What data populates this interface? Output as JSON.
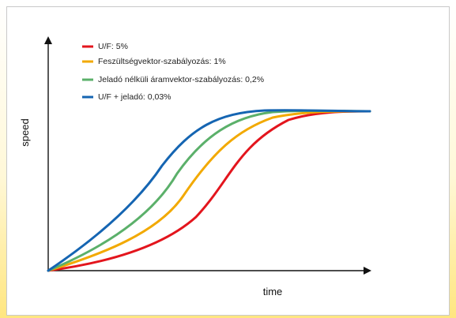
{
  "chart_data": {
    "type": "line",
    "xlabel": "time",
    "ylabel": "speed",
    "grid": false,
    "legend_position": "top-left",
    "series": [
      {
        "name": "U/F: 5%",
        "color": "#e3151d"
      },
      {
        "name": "Feszültségvektor-szabályozás: 1%",
        "color": "#f2a900"
      },
      {
        "name": "Jeladó nélküli áramvektor-szabályozás: 0,2%",
        "color": "#5bb06a"
      },
      {
        "name": "U/F + jeladó: 0,03%",
        "color": "#1565b2"
      }
    ]
  }
}
